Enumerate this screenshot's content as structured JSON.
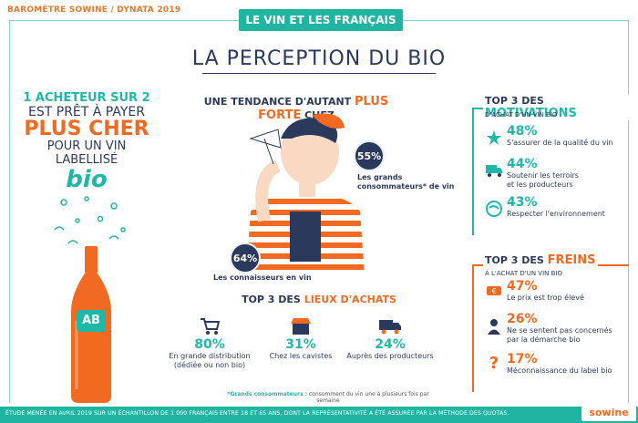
{
  "header": {
    "left": "BAROMÈTRE SOWINE / DYNATA 2019",
    "tag": "LE VIN ET LES FRANÇAIS"
  },
  "title": "LA PERCEPTION DU BIO",
  "left": {
    "line1": "1 ACHETEUR SUR 2",
    "line2": "EST PRÊT À PAYER",
    "line3": "PLUS CHER",
    "line4": "POUR UN VIN LABELLISÉ",
    "line5": "bio",
    "bottle_label": "AB"
  },
  "trend": {
    "pre": "UNE TENDANCE D'AUTANT ",
    "highlight": "PLUS FORTE",
    "post": " CHEZ"
  },
  "stat1": {
    "pct": "55%",
    "label_a": "Les grands",
    "label_b": "consommateurs* de vin"
  },
  "stat2": {
    "pct": "64%",
    "label": "Les connaisseurs en vin"
  },
  "lieux": {
    "pre": "TOP 3 DES ",
    "highlight": "LIEUX D'ACHATS",
    "items": [
      {
        "pct": "80%",
        "line1": "En grande distribution",
        "line2": "(dédiée ou non bio)"
      },
      {
        "pct": "31%",
        "line1": "Chez les cavistes",
        "line2": ""
      },
      {
        "pct": "24%",
        "line1": "Auprès des producteurs",
        "line2": ""
      }
    ]
  },
  "footnote": {
    "bold": "*Grands consommateurs :",
    "text": " consomment du vin une à plusieurs fois par semaine"
  },
  "motivations": {
    "pre": "TOP 3 DES ",
    "highlight": "MOTIVATIONS",
    "sub": "D'ACHAT D'UN VIN BIO",
    "items": [
      {
        "pct": "48%",
        "line1": "S'assurer de la qualité du vin",
        "line2": "",
        "icon": "star-icon"
      },
      {
        "pct": "44%",
        "line1": "Soutenir les terroirs",
        "line2": "et les producteurs",
        "icon": "truck-icon"
      },
      {
        "pct": "43%",
        "line1": "Respecter l'environnement",
        "line2": "",
        "icon": "earth-icon"
      }
    ]
  },
  "freins": {
    "pre": "TOP 3 DES ",
    "highlight": "FREINS",
    "sub": "À L'ACHAT D'UN VIN BIO",
    "items": [
      {
        "pct": "47%",
        "line1": "Le prix est trop élevé",
        "line2": "",
        "icon": "price-tag-icon"
      },
      {
        "pct": "26%",
        "line1": "Ne se sentent pas concernés",
        "line2": "par la démarche bio",
        "icon": "person-icon"
      },
      {
        "pct": "17%",
        "line1": "Méconnaissance du label bio",
        "line2": "",
        "icon": "question-icon"
      }
    ]
  },
  "bottom": {
    "study": "ÉTUDE MENÉE EN AVRIL 2019 SUR UN ÉCHANTILLON DE 1 000 FRANÇAIS ENTRE 18 ET 65 ANS, DONT LA REPRÉSENTATIVITÉ A ÉTÉ ASSURÉE PAR LA MÉTHODE DES QUOTAS.",
    "logo": "sowine"
  },
  "colors": {
    "teal": "#1fb8a6",
    "orange": "#f26a21",
    "navy": "#2b3a5c"
  }
}
